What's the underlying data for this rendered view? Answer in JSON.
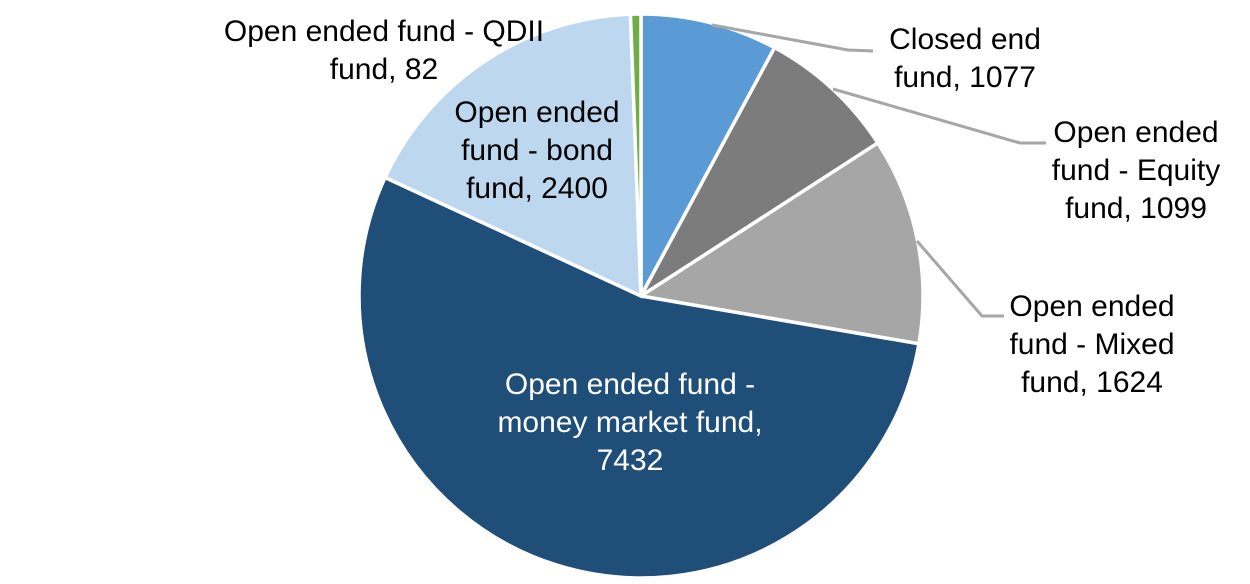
{
  "chart_data": {
    "type": "pie",
    "title": "",
    "legend": "none",
    "background": "#FFFFFF",
    "slice_border_color": "#FFFFFF",
    "leader_line_color": "#A6A6A6",
    "label_format": "name, value",
    "start_angle_deg": 0,
    "direction": "clockwise",
    "segments": [
      {
        "label": "Closed end fund",
        "value": 1077,
        "color": "#5B9BD5",
        "label_color": "#000000",
        "label_placement": "outside"
      },
      {
        "label": "Open ended fund - Equity fund",
        "value": 1099,
        "color": "#7C7C7C",
        "label_color": "#000000",
        "label_placement": "outside"
      },
      {
        "label": "Open ended fund - Mixed fund",
        "value": 1624,
        "color": "#A6A6A6",
        "label_color": "#000000",
        "label_placement": "outside"
      },
      {
        "label": "Open ended fund - money market fund",
        "value": 7432,
        "color": "#1F4E79",
        "label_color": "#FFFFFF",
        "label_placement": "inside"
      },
      {
        "label": "Open ended fund - bond fund",
        "value": 2400,
        "color": "#BDD7EE",
        "label_color": "#000000",
        "label_placement": "outside"
      },
      {
        "label": "Open ended fund - QDII fund",
        "value": 82,
        "color": "#70AD47",
        "label_color": "#000000",
        "label_placement": "outside"
      }
    ]
  }
}
